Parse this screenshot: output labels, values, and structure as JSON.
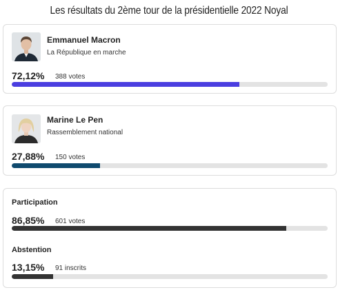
{
  "title": "Les résultats du 2ème tour de la présidentielle 2022 Noyal",
  "candidates": [
    {
      "name": "Emmanuel Macron",
      "party": "La République en marche",
      "percent_label": "72,12%",
      "percent": 72.12,
      "votes_label": "388 votes",
      "color": "#4b3ee0",
      "photo": "candidate-photo"
    },
    {
      "name": "Marine Le Pen",
      "party": "Rassemblement national",
      "percent_label": "27,88%",
      "percent": 27.88,
      "votes_label": "150 votes",
      "color": "#0f4a6e",
      "photo": "candidate-photo"
    }
  ],
  "participation": {
    "label": "Participation",
    "percent_label": "86,85%",
    "percent": 86.85,
    "votes_label": "601 votes",
    "color": "#333333"
  },
  "abstention": {
    "label": "Abstention",
    "percent_label": "13,15%",
    "percent": 13.15,
    "votes_label": "91 inscrits",
    "color": "#333333"
  }
}
